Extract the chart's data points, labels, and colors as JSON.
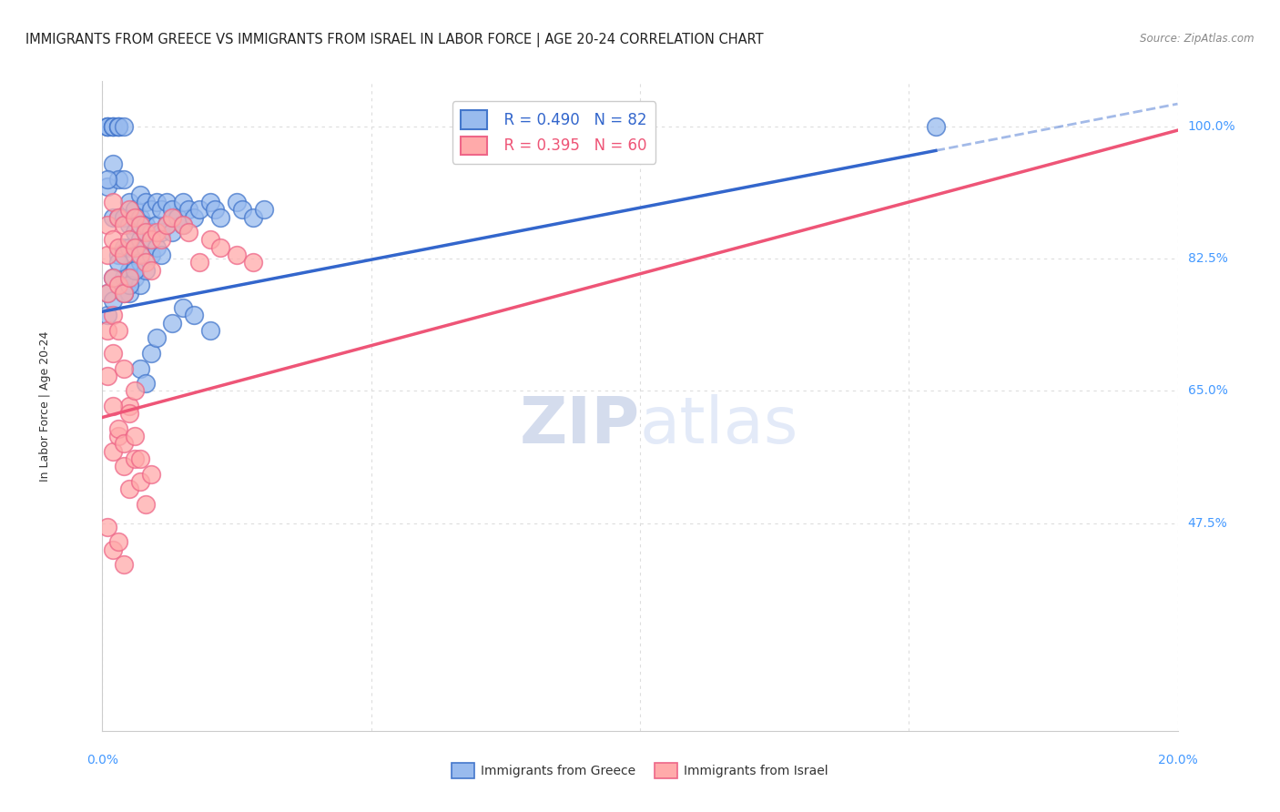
{
  "title": "IMMIGRANTS FROM GREECE VS IMMIGRANTS FROM ISRAEL IN LABOR FORCE | AGE 20-24 CORRELATION CHART",
  "source": "Source: ZipAtlas.com",
  "greece_R": 0.49,
  "greece_N": 82,
  "israel_R": 0.395,
  "israel_N": 60,
  "greece_color": "#99BBEE",
  "israel_color": "#FFAAAA",
  "greece_edge_color": "#4477CC",
  "israel_edge_color": "#EE6688",
  "greece_line_color": "#3366CC",
  "israel_line_color": "#EE5577",
  "axis_label_color": "#4499FF",
  "title_color": "#222222",
  "source_color": "#888888",
  "grid_color": "#DDDDDD",
  "watermark_ZIP_color": "#AABBDD",
  "watermark_atlas_color": "#BBCCEE",
  "xmin": 0.0,
  "xmax": 0.2,
  "ymin": 0.2,
  "ymax": 1.06,
  "ytick_vals": [
    1.0,
    0.825,
    0.65,
    0.475
  ],
  "ytick_labels": [
    "100.0%",
    "82.5%",
    "65.0%",
    "47.5%"
  ],
  "xtick_vals": [
    0.0,
    0.2
  ],
  "xtick_labels": [
    "0.0%",
    "20.0%"
  ],
  "greece_line_x": [
    0.0,
    0.2
  ],
  "greece_line_y": [
    0.755,
    1.03
  ],
  "greece_line_solid_end": 0.155,
  "israel_line_x": [
    0.0,
    0.2
  ],
  "israel_line_y": [
    0.615,
    0.995
  ],
  "ylabel": "In Labor Force | Age 20-24",
  "legend_label_greece": "  R = 0.490   N = 82",
  "legend_label_israel": "  R = 0.395   N = 60",
  "bottom_legend_greece": "Immigrants from Greece",
  "bottom_legend_israel": "Immigrants from Israel",
  "greece_scatter_x": [
    0.001,
    0.001,
    0.001,
    0.001,
    0.002,
    0.002,
    0.002,
    0.002,
    0.002,
    0.003,
    0.003,
    0.003,
    0.003,
    0.003,
    0.003,
    0.004,
    0.004,
    0.004,
    0.004,
    0.004,
    0.005,
    0.005,
    0.005,
    0.005,
    0.005,
    0.006,
    0.006,
    0.006,
    0.006,
    0.007,
    0.007,
    0.007,
    0.007,
    0.007,
    0.008,
    0.008,
    0.008,
    0.008,
    0.009,
    0.009,
    0.009,
    0.01,
    0.01,
    0.01,
    0.011,
    0.011,
    0.011,
    0.012,
    0.012,
    0.013,
    0.013,
    0.014,
    0.015,
    0.015,
    0.016,
    0.017,
    0.018,
    0.02,
    0.021,
    0.022,
    0.025,
    0.026,
    0.028,
    0.03,
    0.001,
    0.001,
    0.002,
    0.002,
    0.003,
    0.004,
    0.005,
    0.006,
    0.007,
    0.008,
    0.009,
    0.01,
    0.013,
    0.015,
    0.017,
    0.02,
    0.155,
    0.001
  ],
  "greece_scatter_y": [
    1.0,
    1.0,
    1.0,
    0.92,
    1.0,
    1.0,
    1.0,
    0.95,
    0.88,
    1.0,
    1.0,
    1.0,
    0.93,
    0.88,
    0.83,
    1.0,
    0.93,
    0.88,
    0.84,
    0.8,
    0.9,
    0.87,
    0.84,
    0.81,
    0.78,
    0.89,
    0.86,
    0.83,
    0.8,
    0.91,
    0.88,
    0.85,
    0.82,
    0.79,
    0.9,
    0.87,
    0.84,
    0.81,
    0.89,
    0.86,
    0.83,
    0.9,
    0.87,
    0.84,
    0.89,
    0.86,
    0.83,
    0.9,
    0.87,
    0.89,
    0.86,
    0.88,
    0.9,
    0.87,
    0.89,
    0.88,
    0.89,
    0.9,
    0.89,
    0.88,
    0.9,
    0.89,
    0.88,
    0.89,
    0.78,
    0.75,
    0.8,
    0.77,
    0.82,
    0.78,
    0.79,
    0.81,
    0.68,
    0.66,
    0.7,
    0.72,
    0.74,
    0.76,
    0.75,
    0.73,
    1.0,
    0.93
  ],
  "israel_scatter_x": [
    0.001,
    0.001,
    0.001,
    0.001,
    0.002,
    0.002,
    0.002,
    0.002,
    0.003,
    0.003,
    0.003,
    0.004,
    0.004,
    0.004,
    0.005,
    0.005,
    0.005,
    0.006,
    0.006,
    0.007,
    0.007,
    0.008,
    0.008,
    0.009,
    0.009,
    0.01,
    0.011,
    0.012,
    0.013,
    0.015,
    0.016,
    0.018,
    0.02,
    0.022,
    0.025,
    0.028,
    0.001,
    0.002,
    0.003,
    0.004,
    0.005,
    0.006,
    0.002,
    0.003,
    0.004,
    0.005,
    0.006,
    0.007,
    0.008,
    0.002,
    0.003,
    0.004,
    0.005,
    0.006,
    0.007,
    0.009,
    0.001,
    0.002,
    0.003,
    0.004
  ],
  "israel_scatter_y": [
    0.87,
    0.83,
    0.78,
    0.73,
    0.9,
    0.85,
    0.8,
    0.75,
    0.88,
    0.84,
    0.79,
    0.87,
    0.83,
    0.78,
    0.89,
    0.85,
    0.8,
    0.88,
    0.84,
    0.87,
    0.83,
    0.86,
    0.82,
    0.85,
    0.81,
    0.86,
    0.85,
    0.87,
    0.88,
    0.87,
    0.86,
    0.82,
    0.85,
    0.84,
    0.83,
    0.82,
    0.67,
    0.7,
    0.73,
    0.68,
    0.63,
    0.65,
    0.57,
    0.59,
    0.55,
    0.52,
    0.56,
    0.53,
    0.5,
    0.63,
    0.6,
    0.58,
    0.62,
    0.59,
    0.56,
    0.54,
    0.47,
    0.44,
    0.45,
    0.42
  ]
}
